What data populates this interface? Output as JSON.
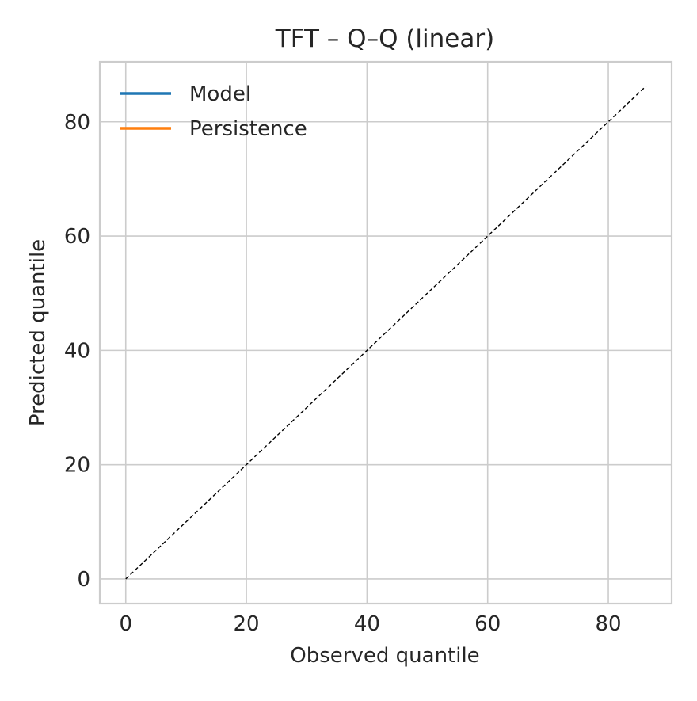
{
  "chart_data": {
    "type": "line",
    "title": "TFT – Q–Q (linear)",
    "xlabel": "Observed quantile",
    "ylabel": "Predicted quantile",
    "xlim": [
      -4.3,
      90.5
    ],
    "ylim": [
      -4.3,
      90.5
    ],
    "xticks": [
      0,
      20,
      40,
      60,
      80
    ],
    "yticks": [
      0,
      20,
      40,
      60,
      80
    ],
    "grid": true,
    "legend_position": "top-left",
    "series": [
      {
        "name": "Model",
        "color": "#1f77b4",
        "x": [],
        "y": []
      },
      {
        "name": "Persistence",
        "color": "#ff7f0e",
        "x": [],
        "y": []
      }
    ],
    "reference_line": {
      "style": "dashed",
      "color": "#000000",
      "x": [
        0,
        86.3
      ],
      "y": [
        0,
        86.3
      ]
    }
  }
}
